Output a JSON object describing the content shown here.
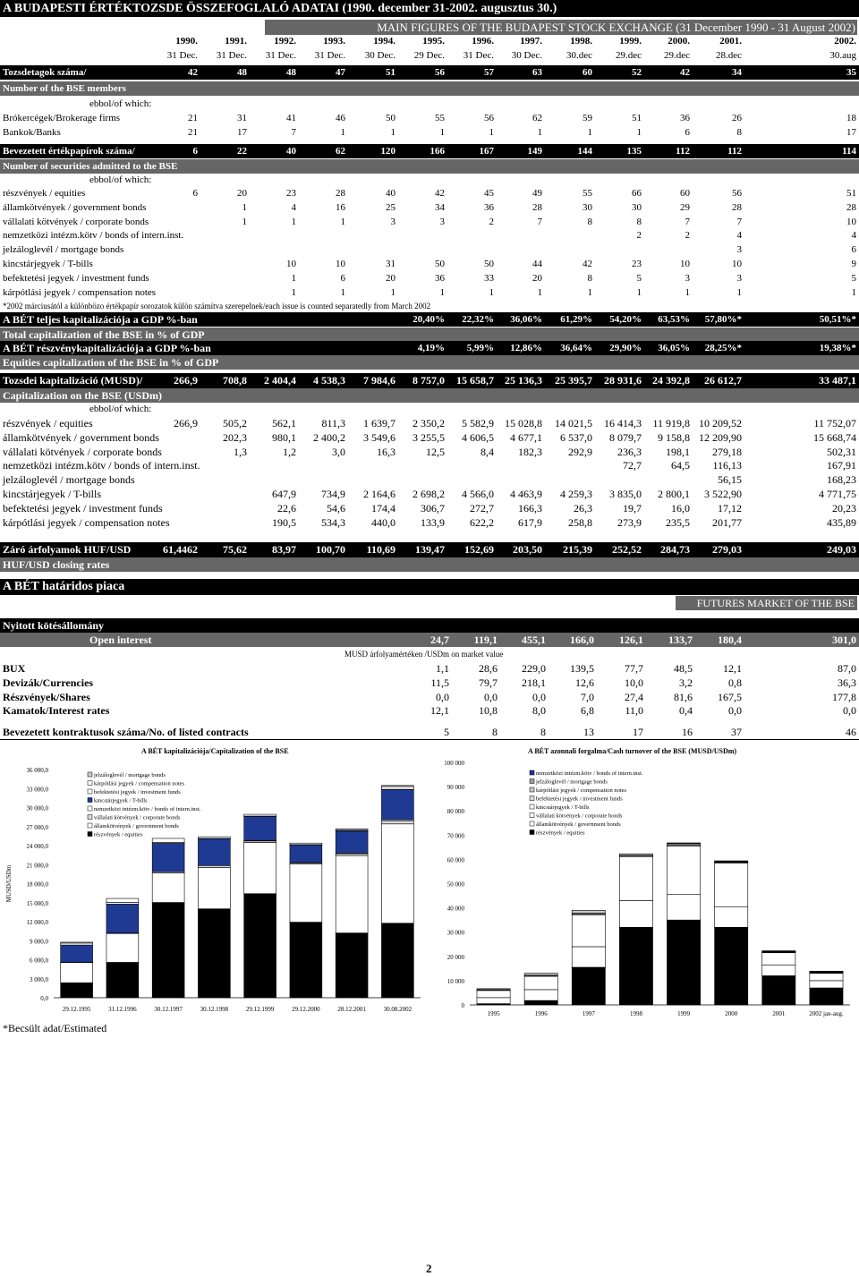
{
  "title_hu": "A BUDAPESTI ÉRTÉKTOZSDE ÖSSZEFOGLALÓ ADATAI (1990. december 31-2002. augusztus 30.)",
  "title_en": "MAIN FIGURES OF  THE BUDAPEST STOCK EXCHANGE (31 December 1990 - 31 August 2002)",
  "years": [
    "1990.",
    "1991.",
    "1992.",
    "1993.",
    "1994.",
    "1995.",
    "1996.",
    "1997.",
    "1998.",
    "1999.",
    "2000.",
    "2001.",
    "2002."
  ],
  "dates": [
    "31 Dec.",
    "31 Dec.",
    "31 Dec.",
    "31 Dec.",
    "30 Dec.",
    "29 Dec.",
    "31 Dec.",
    "30 Dec.",
    "30.dec",
    "29.dec",
    "29.dec",
    "28.dec",
    "30.aug"
  ],
  "members": {
    "bar_label": "Tozsdetagok száma/",
    "bar_values": [
      "42",
      "48",
      "48",
      "47",
      "51",
      "56",
      "57",
      "63",
      "60",
      "52",
      "42",
      "34",
      "35"
    ],
    "sub_label": "Number of the BSE members",
    "ebbol": "ebbol/of which:",
    "rows": [
      {
        "label": "Brókercégek/Brokerage firms",
        "values": [
          "21",
          "31",
          "41",
          "46",
          "50",
          "55",
          "56",
          "62",
          "59",
          "51",
          "36",
          "26",
          "18"
        ]
      },
      {
        "label": "Bankok/Banks",
        "values": [
          "21",
          "17",
          "7",
          "1",
          "1",
          "1",
          "1",
          "1",
          "1",
          "1",
          "6",
          "8",
          "17"
        ]
      }
    ]
  },
  "securities": {
    "bar_label": "Bevezetett értékpapírok száma/",
    "bar_values": [
      "6",
      "22",
      "40",
      "62",
      "120",
      "166",
      "167",
      "149",
      "144",
      "135",
      "112",
      "112",
      "114"
    ],
    "sub_label": "Number of securities admitted to the BSE",
    "ebbol": "ebbol/of which:",
    "rows": [
      {
        "label": "részvények / equities",
        "values": [
          "6",
          "20",
          "23",
          "28",
          "40",
          "42",
          "45",
          "49",
          "55",
          "66",
          "60",
          "56",
          "51"
        ]
      },
      {
        "label": "államkötvények / government bonds",
        "values": [
          "",
          "1",
          "4",
          "16",
          "25",
          "34",
          "36",
          "28",
          "30",
          "30",
          "29",
          "28",
          "28"
        ]
      },
      {
        "label": "vállalati kötvények / corporate bonds",
        "values": [
          "",
          "1",
          "1",
          "1",
          "3",
          "3",
          "2",
          "7",
          "8",
          "8",
          "7",
          "7",
          "10"
        ]
      },
      {
        "label": "nemzetközi intézm.kötv / bonds of intern.inst.",
        "values": [
          "",
          "",
          "",
          "",
          "",
          "",
          "",
          "",
          "",
          "2",
          "2",
          "4",
          "4"
        ]
      },
      {
        "label": "jelzáloglevél / mortgage bonds",
        "values": [
          "",
          "",
          "",
          "",
          "",
          "",
          "",
          "",
          "",
          "",
          "",
          "3",
          "6"
        ]
      },
      {
        "label": "kincstárjegyek / T-bills",
        "values": [
          "",
          "",
          "10",
          "10",
          "31",
          "50",
          "50",
          "44",
          "42",
          "23",
          "10",
          "10",
          "9"
        ]
      },
      {
        "label": "befektetési jegyek / investment funds",
        "values": [
          "",
          "",
          "1",
          "6",
          "20",
          "36",
          "33",
          "20",
          "8",
          "5",
          "3",
          "3",
          "5"
        ]
      },
      {
        "label": "kárpótlási jegyek / compensation notes",
        "values": [
          "",
          "",
          "1",
          "1",
          "1",
          "1",
          "1",
          "1",
          "1",
          "1",
          "1",
          "1",
          "1"
        ]
      }
    ]
  },
  "note_2002": "*2002 márciusától a különbözo értékpapír sorozatok külön számítva szerepelnek/each issue is counted separatedly from March 2002",
  "cap_gdp": {
    "label": "A BÉT teljes kapitalizációja a GDP %-ban",
    "values": [
      "",
      "",
      "",
      "",
      "",
      "20,40%",
      "22,32%",
      "36,06%",
      "61,29%",
      "54,20%",
      "63,53%",
      "57,80%*",
      "50,51%*"
    ],
    "sub_label": "Total capitalization of the BSE in % of GDP"
  },
  "eq_gdp": {
    "label": "A BÉT részvénykapitalizációja a GDP %-ban",
    "values": [
      "",
      "",
      "",
      "",
      "",
      "4,19%",
      "5,99%",
      "12,86%",
      "36,64%",
      "29,90%",
      "36,05%",
      "28,25%*",
      "19,38%*"
    ],
    "sub_label": "Equities capitalization of the BSE in % of GDP"
  },
  "capitalization": {
    "bar_label": "Tozsdei kapitalizáció (MUSD)/",
    "bar_values": [
      "266,9",
      "708,8",
      "2 404,4",
      "4 538,3",
      "7 984,6",
      "8 757,0",
      "15 658,7",
      "25 136,3",
      "25 395,7",
      "28 931,6",
      "24 392,8",
      "26 612,7",
      "33 487,1"
    ],
    "sub_label": "Capitalization on the BSE (USDm)",
    "ebbol": "ebbol/of which:",
    "rows": [
      {
        "label": "részvények / equities",
        "values": [
          "266,9",
          "505,2",
          "562,1",
          "811,3",
          "1 639,7",
          "2 350,2",
          "5 582,9",
          "15 028,8",
          "14 021,5",
          "16 414,3",
          "11 919,8",
          "10 209,52",
          "11 752,07"
        ]
      },
      {
        "label": "államkötvények / government bonds",
        "values": [
          "",
          "202,3",
          "980,1",
          "2 400,2",
          "3 549,6",
          "3 255,5",
          "4 606,5",
          "4 677,1",
          "6 537,0",
          "8 079,7",
          "9 158,8",
          "12 209,90",
          "15 668,74"
        ]
      },
      {
        "label": "vállalati kötvények / corporate bonds",
        "values": [
          "",
          "1,3",
          "1,2",
          "3,0",
          "16,3",
          "12,5",
          "8,4",
          "182,3",
          "292,9",
          "236,3",
          "198,1",
          "279,18",
          "502,31"
        ]
      },
      {
        "label": "nemzetközi intézm.kötv / bonds of intern.inst.",
        "values": [
          "",
          "",
          "",
          "",
          "",
          "",
          "",
          "",
          "",
          "72,7",
          "64,5",
          "116,13",
          "167,91"
        ]
      },
      {
        "label": "jelzáloglevél / mortgage bonds",
        "values": [
          "",
          "",
          "",
          "",
          "",
          "",
          "",
          "",
          "",
          "",
          "",
          "56,15",
          "168,23"
        ]
      },
      {
        "label": "kincstárjegyek / T-bills",
        "values": [
          "",
          "",
          "647,9",
          "734,9",
          "2 164,6",
          "2 698,2",
          "4 566,0",
          "4 463,9",
          "4 259,3",
          "3 835,0",
          "2 800,1",
          "3 522,90",
          "4 771,75"
        ]
      },
      {
        "label": "befektetési jegyek / investment funds",
        "values": [
          "",
          "",
          "22,6",
          "54,6",
          "174,4",
          "306,7",
          "272,7",
          "166,3",
          "26,3",
          "19,7",
          "16,0",
          "17,12",
          "20,23"
        ]
      },
      {
        "label": "kárpótlási jegyek / compensation notes",
        "values": [
          "",
          "",
          "190,5",
          "534,3",
          "440,0",
          "133,9",
          "622,2",
          "617,9",
          "258,8",
          "273,9",
          "235,5",
          "201,77",
          "435,89"
        ]
      }
    ]
  },
  "fx": {
    "bar_label": "Záró árfolyamok HUF/USD",
    "bar_values": [
      "61,4462",
      "75,62",
      "83,97",
      "100,70",
      "110,69",
      "139,47",
      "152,69",
      "203,50",
      "215,39",
      "252,52",
      "284,73",
      "279,03",
      "249,03"
    ],
    "sub_label": "HUF/USD closing rates"
  },
  "futures": {
    "title_hu": "A BÉT határidos piaca",
    "title_en": "FUTURES MARKET OF THE BSE",
    "oi_label_hu": "Nyitott kötésállomány",
    "oi_label_en": "Open interest",
    "oi_values": [
      "24,7",
      "119,1",
      "455,1",
      "166,0",
      "126,1",
      "133,7",
      "180,4",
      "301,0"
    ],
    "unit_note": "MUSD árfolyamértéken /USDm on market value",
    "rows": [
      {
        "label": "BUX",
        "values": [
          "1,1",
          "28,6",
          "229,0",
          "139,5",
          "77,7",
          "48,5",
          "12,1",
          "87,0"
        ]
      },
      {
        "label": "Devizák/Currencies",
        "values": [
          "11,5",
          "79,7",
          "218,1",
          "12,6",
          "10,0",
          "3,2",
          "0,8",
          "36,3"
        ]
      },
      {
        "label": "Részvények/Shares",
        "values": [
          "0,0",
          "0,0",
          "0,0",
          "7,0",
          "27,4",
          "81,6",
          "167,5",
          "177,8"
        ]
      },
      {
        "label": "Kamatok/Interest rates",
        "values": [
          "12,1",
          "10,8",
          "8,0",
          "6,8",
          "11,0",
          "0,4",
          "0,0",
          "0,0"
        ]
      }
    ],
    "contracts_label": "Bevezetett kontraktusok száma/No. of listed contracts",
    "contracts_values": [
      "5",
      "8",
      "8",
      "13",
      "17",
      "16",
      "37",
      "46"
    ]
  },
  "estimated_note": "*Becsült adat/Estimated",
  "page_number": "2",
  "chart_data": [
    {
      "type": "bar",
      "title": "A BÉT kapitalizációja/Capitalization of the BSE",
      "ylabel": "MUSD/USDm",
      "ylim": [
        0,
        36000
      ],
      "yticks": [
        "0,0",
        "3 000,0",
        "6 000,0",
        "9 000,0",
        "12 000,0",
        "15 000,0",
        "18 000,0",
        "21 000,0",
        "24 000,0",
        "27 000,0",
        "30 000,0",
        "33 000,0",
        "36 000,0"
      ],
      "categories": [
        "29.12.1995",
        "31.12.1996",
        "30.12.1997",
        "30.12.1998",
        "29.12.1999",
        "29.12.2000",
        "28.12.2001",
        "30.08.2002"
      ],
      "legend": [
        "jelzáloglevél / mortgage bonds",
        "kárpótlási jegyek / compensation notes",
        "befektetési jegyek / investment funds",
        "kincstárjegyek / T-bills",
        "nemzetközi intézm.kötv / bonds of intern.inst.",
        "vállalati kötvények / corporate bonds",
        "államkötvények / government bonds",
        "részvények / equities"
      ],
      "series": [
        {
          "name": "részvények / equities",
          "values": [
            2350.2,
            5582.9,
            15028.8,
            14021.5,
            16414.3,
            11919.8,
            10209.52,
            11752.07
          ]
        },
        {
          "name": "államkötvények / government bonds",
          "values": [
            3255.5,
            4606.5,
            4677.1,
            6537.0,
            8079.7,
            9158.8,
            12209.9,
            15668.74
          ]
        },
        {
          "name": "vállalati kötvények / corporate bonds",
          "values": [
            12.5,
            8.4,
            182.3,
            292.9,
            236.3,
            198.1,
            279.18,
            502.31
          ]
        },
        {
          "name": "nemzetközi intézm.kötv / bonds of intern.inst.",
          "values": [
            0,
            0,
            0,
            0,
            72.7,
            64.5,
            116.13,
            167.91
          ]
        },
        {
          "name": "kincstárjegyek / T-bills",
          "values": [
            2698.2,
            4566.0,
            4463.9,
            4259.3,
            3835.0,
            2800.1,
            3522.9,
            4771.75
          ]
        },
        {
          "name": "befektetési jegyek / investment funds",
          "values": [
            306.7,
            272.7,
            166.3,
            26.3,
            19.7,
            16.0,
            17.12,
            20.23
          ]
        },
        {
          "name": "kárpótlási jegyek / compensation notes",
          "values": [
            133.9,
            622.2,
            617.9,
            258.8,
            273.9,
            235.5,
            201.77,
            435.89
          ]
        },
        {
          "name": "jelzáloglevél / mortgage bonds",
          "values": [
            0,
            0,
            0,
            0,
            0,
            0,
            56.15,
            168.23
          ]
        }
      ],
      "colors": [
        "#000000",
        "#ffffff",
        "#d9d9d9",
        "#ffffff",
        "#1f3a93",
        "#ffffff",
        "#ffffff",
        "#c8c8c8"
      ]
    },
    {
      "type": "bar",
      "title": "A BÉT azonnali forgalma/Cash turnover of the BSE (MUSD/USDm)",
      "ylim": [
        0,
        100000
      ],
      "yticks": [
        "0",
        "10 000",
        "20 000",
        "30 000",
        "40 000",
        "50 000",
        "60 000",
        "70 000",
        "80 000",
        "90 000",
        "100 000"
      ],
      "categories": [
        "1995",
        "1996",
        "1997",
        "1998",
        "1999",
        "2000",
        "2001",
        "2002 jan-aug."
      ],
      "legend": [
        "nemzetközi intézm.kötv / bonds of intern.inst.",
        "jelzáloglevél / mortgage bonds",
        "kárpótlási jegyek / compensation notes",
        "befektetési jegyek / investment funds",
        "kincstárjegyek / T-bills",
        "vállalati kötvények / corporate bonds",
        "államkötvények / government bonds",
        "részvények / equities"
      ],
      "series": [
        {
          "name": "részvények / equities",
          "values": [
            500,
            1800,
            15500,
            32000,
            35000,
            32000,
            12000,
            7000
          ]
        },
        {
          "name": "államkötvények / government bonds",
          "values": [
            2500,
            4500,
            8500,
            11000,
            10500,
            8500,
            4500,
            3000
          ]
        },
        {
          "name": "kincstárjegyek / T-bills",
          "values": [
            3000,
            5500,
            13000,
            18000,
            20000,
            18000,
            5000,
            3000
          ]
        },
        {
          "name": "vállalati kötvények / corporate bonds",
          "values": [
            100,
            150,
            500,
            500,
            500,
            300,
            200,
            200
          ]
        },
        {
          "name": "befektetési jegyek / investment funds",
          "values": [
            200,
            300,
            300,
            200,
            100,
            100,
            100,
            100
          ]
        },
        {
          "name": "kárpótlási jegyek / compensation notes",
          "values": [
            400,
            800,
            1200,
            600,
            500,
            300,
            200,
            200
          ]
        },
        {
          "name": "jelzáloglevél / mortgage bonds",
          "values": [
            0,
            0,
            0,
            0,
            0,
            0,
            100,
            200
          ]
        },
        {
          "name": "nemzetközi intézm.kötv / bonds of intern.inst.",
          "values": [
            0,
            0,
            0,
            0,
            200,
            200,
            200,
            200
          ]
        }
      ],
      "colors": [
        "#000000",
        "#ffffff",
        "#ffffff",
        "#ffffff",
        "#d9d9d9",
        "#c8c8c8",
        "#9aa0a6",
        "#1f3a93"
      ]
    }
  ]
}
